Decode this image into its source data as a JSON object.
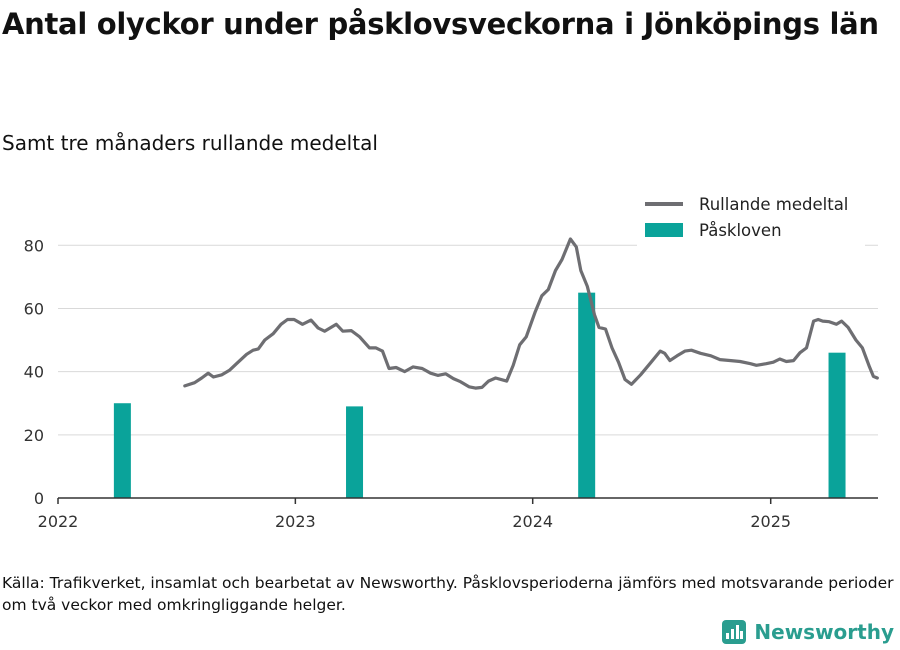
{
  "title": "Antal olyckor under påsklovsveckorna i Jönköpings län",
  "subtitle": "Samt tre månaders rullande medeltal",
  "source": "Källa: Trafikverket, insamlat och bearbetat av Newsworthy. Påsklovsperioderna jämförs med motsvarande perioder om två veckor med omkringliggande helger.",
  "brand": {
    "name": "Newsworthy"
  },
  "colors": {
    "line": "#6e6e72",
    "bar": "#0aa39a",
    "brand": "#2a9d8f"
  },
  "chart_data": {
    "type": "bar+line",
    "xlim": [
      "2022-01-01",
      "2025-06-15"
    ],
    "ylim": [
      0,
      88
    ],
    "x_ticks": [
      {
        "date": "2022-01-01",
        "label": "2022"
      },
      {
        "date": "2023-01-01",
        "label": "2023"
      },
      {
        "date": "2024-01-01",
        "label": "2024"
      },
      {
        "date": "2025-01-01",
        "label": "2025"
      }
    ],
    "y_ticks": [
      0,
      20,
      40,
      60,
      80
    ],
    "grid": "horizontal",
    "legend": {
      "placement": "top-right",
      "entries": [
        {
          "label": "Rullande medeltal",
          "kind": "line"
        },
        {
          "label": "Påskloven",
          "kind": "bar"
        }
      ]
    },
    "bars": {
      "name": "Påskloven",
      "points": [
        {
          "date": "2022-04-10",
          "value": 30
        },
        {
          "date": "2023-04-02",
          "value": 29
        },
        {
          "date": "2024-03-24",
          "value": 65
        },
        {
          "date": "2025-04-13",
          "value": 46
        }
      ]
    },
    "line": {
      "name": "Rullande medeltal",
      "points": [
        {
          "date": "2022-07-15",
          "value": 35.5
        },
        {
          "date": "2022-07-30",
          "value": 36.5
        },
        {
          "date": "2022-08-10",
          "value": 38
        },
        {
          "date": "2022-08-20",
          "value": 39.5
        },
        {
          "date": "2022-08-28",
          "value": 38.3
        },
        {
          "date": "2022-09-10",
          "value": 39
        },
        {
          "date": "2022-09-22",
          "value": 40.5
        },
        {
          "date": "2022-10-05",
          "value": 43
        },
        {
          "date": "2022-10-18",
          "value": 45.5
        },
        {
          "date": "2022-10-28",
          "value": 46.8
        },
        {
          "date": "2022-11-05",
          "value": 47.2
        },
        {
          "date": "2022-11-15",
          "value": 50
        },
        {
          "date": "2022-11-28",
          "value": 52
        },
        {
          "date": "2022-12-10",
          "value": 55
        },
        {
          "date": "2022-12-20",
          "value": 56.5
        },
        {
          "date": "2022-12-30",
          "value": 56.5
        },
        {
          "date": "2023-01-12",
          "value": 55
        },
        {
          "date": "2023-01-25",
          "value": 56.3
        },
        {
          "date": "2023-02-05",
          "value": 53.8
        },
        {
          "date": "2023-02-15",
          "value": 52.8
        },
        {
          "date": "2023-03-05",
          "value": 55
        },
        {
          "date": "2023-03-15",
          "value": 52.8
        },
        {
          "date": "2023-03-28",
          "value": 53
        },
        {
          "date": "2023-04-10",
          "value": 51
        },
        {
          "date": "2023-04-25",
          "value": 47.5
        },
        {
          "date": "2023-05-05",
          "value": 47.5
        },
        {
          "date": "2023-05-15",
          "value": 46.5
        },
        {
          "date": "2023-05-25",
          "value": 41
        },
        {
          "date": "2023-06-05",
          "value": 41.3
        },
        {
          "date": "2023-06-18",
          "value": 40
        },
        {
          "date": "2023-07-01",
          "value": 41.5
        },
        {
          "date": "2023-07-15",
          "value": 41
        },
        {
          "date": "2023-07-28",
          "value": 39.5
        },
        {
          "date": "2023-08-08",
          "value": 38.8
        },
        {
          "date": "2023-08-20",
          "value": 39.3
        },
        {
          "date": "2023-09-01",
          "value": 37.8
        },
        {
          "date": "2023-09-12",
          "value": 36.8
        },
        {
          "date": "2023-09-25",
          "value": 35.2
        },
        {
          "date": "2023-10-05",
          "value": 34.8
        },
        {
          "date": "2023-10-15",
          "value": 35
        },
        {
          "date": "2023-10-25",
          "value": 37
        },
        {
          "date": "2023-11-05",
          "value": 38
        },
        {
          "date": "2023-11-22",
          "value": 37
        },
        {
          "date": "2023-12-02",
          "value": 42
        },
        {
          "date": "2023-12-12",
          "value": 48.5
        },
        {
          "date": "2023-12-22",
          "value": 51
        },
        {
          "date": "2024-01-05",
          "value": 59
        },
        {
          "date": "2024-01-15",
          "value": 64
        },
        {
          "date": "2024-01-25",
          "value": 66
        },
        {
          "date": "2024-02-05",
          "value": 72
        },
        {
          "date": "2024-02-15",
          "value": 75.5
        },
        {
          "date": "2024-02-28",
          "value": 82
        },
        {
          "date": "2024-03-08",
          "value": 79.5
        },
        {
          "date": "2024-03-15",
          "value": 72
        },
        {
          "date": "2024-03-25",
          "value": 67
        },
        {
          "date": "2024-04-05",
          "value": 58
        },
        {
          "date": "2024-04-12",
          "value": 54
        },
        {
          "date": "2024-04-22",
          "value": 53.5
        },
        {
          "date": "2024-05-02",
          "value": 47.5
        },
        {
          "date": "2024-05-12",
          "value": 43
        },
        {
          "date": "2024-05-22",
          "value": 37.5
        },
        {
          "date": "2024-06-01",
          "value": 36
        },
        {
          "date": "2024-06-15",
          "value": 39
        },
        {
          "date": "2024-07-01",
          "value": 43
        },
        {
          "date": "2024-07-15",
          "value": 46.5
        },
        {
          "date": "2024-07-22",
          "value": 45.8
        },
        {
          "date": "2024-07-30",
          "value": 43.5
        },
        {
          "date": "2024-08-10",
          "value": 45
        },
        {
          "date": "2024-08-22",
          "value": 46.5
        },
        {
          "date": "2024-09-01",
          "value": 46.8
        },
        {
          "date": "2024-09-15",
          "value": 45.8
        },
        {
          "date": "2024-10-01",
          "value": 45
        },
        {
          "date": "2024-10-15",
          "value": 43.8
        },
        {
          "date": "2024-11-01",
          "value": 43.5
        },
        {
          "date": "2024-11-15",
          "value": 43.2
        },
        {
          "date": "2024-12-01",
          "value": 42.5
        },
        {
          "date": "2024-12-10",
          "value": 42
        },
        {
          "date": "2024-12-25",
          "value": 42.5
        },
        {
          "date": "2025-01-05",
          "value": 43
        },
        {
          "date": "2025-01-15",
          "value": 44
        },
        {
          "date": "2025-01-25",
          "value": 43.2
        },
        {
          "date": "2025-02-05",
          "value": 43.5
        },
        {
          "date": "2025-02-15",
          "value": 46
        },
        {
          "date": "2025-02-25",
          "value": 47.5
        },
        {
          "date": "2025-03-08",
          "value": 56
        },
        {
          "date": "2025-03-15",
          "value": 56.5
        },
        {
          "date": "2025-03-22",
          "value": 56
        },
        {
          "date": "2025-04-01",
          "value": 55.8
        },
        {
          "date": "2025-04-12",
          "value": 55
        },
        {
          "date": "2025-04-20",
          "value": 56
        },
        {
          "date": "2025-04-30",
          "value": 54
        },
        {
          "date": "2025-05-12",
          "value": 50
        },
        {
          "date": "2025-05-22",
          "value": 47.5
        },
        {
          "date": "2025-06-02",
          "value": 41.5
        },
        {
          "date": "2025-06-08",
          "value": 38.5
        },
        {
          "date": "2025-06-14",
          "value": 38
        }
      ]
    }
  }
}
